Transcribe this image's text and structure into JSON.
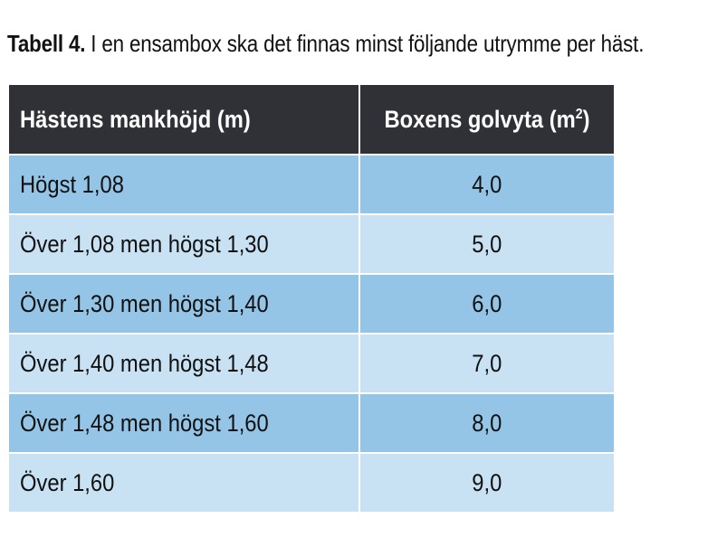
{
  "caption": {
    "label": "Tabell 4.",
    "text": " I en ensambox ska det finnas minst följande utrymme per häst."
  },
  "table": {
    "headers": {
      "col1": "Hästens mankhöjd (m)",
      "col2_prefix": "Boxens golvyta (m",
      "col2_sup": "2",
      "col2_suffix": ")"
    },
    "rows": [
      {
        "height": "Högst 1,08",
        "area": "4,0"
      },
      {
        "height": "Över 1,08 men högst 1,30",
        "area": "5,0"
      },
      {
        "height": "Över 1,30 men högst 1,40",
        "area": "6,0"
      },
      {
        "height": "Över 1,40 men högst 1,48",
        "area": "7,0"
      },
      {
        "height": "Över 1,48 men högst 1,60",
        "area": "8,0"
      },
      {
        "height": "Över 1,60",
        "area": "9,0"
      }
    ],
    "colors": {
      "header_bg": "#2f3136",
      "row_dark": "#94c5e6",
      "row_light": "#c8e2f3"
    }
  }
}
